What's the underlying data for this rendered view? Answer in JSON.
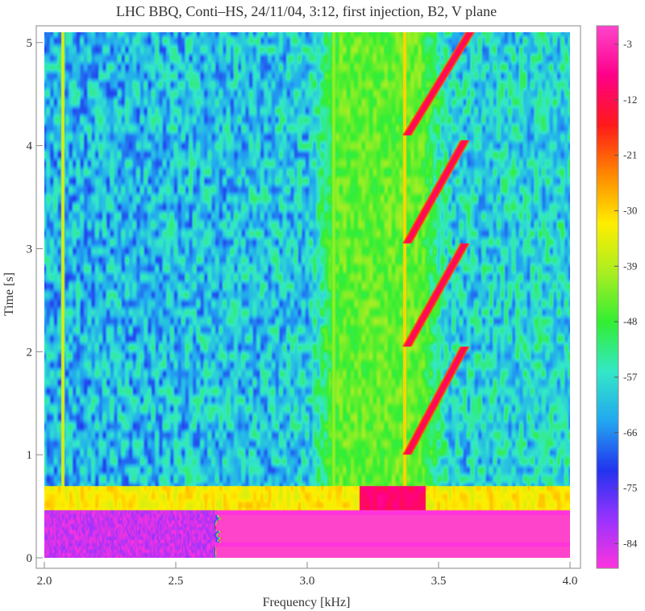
{
  "chart_data": {
    "type": "heatmap",
    "title": "LHC BBQ,  Conti–HS,  24/11/04,  3:12,  first injection,  B2,  V plane",
    "xlabel": "Frequency  [kHz]",
    "ylabel": "Time  [s]",
    "xlim": [
      2.0,
      4.0
    ],
    "ylim": [
      0,
      5.1
    ],
    "x_ticks": [
      "2.0",
      "2.5",
      "3.0",
      "3.5",
      "4.0"
    ],
    "y_ticks": [
      "0",
      "1",
      "2",
      "3",
      "4",
      "5"
    ],
    "colorbar": {
      "range": [
        -88,
        0
      ],
      "ticks": [
        "-3",
        "-12",
        "-21",
        "-30",
        "-39",
        "-48",
        "-57",
        "-66",
        "-75",
        "-84"
      ]
    },
    "color_scheme": [
      "#ff33dd",
      "#9933ff",
      "#2233ee",
      "#22a8f0",
      "#33e8c8",
      "#33ee33",
      "#aaee22",
      "#ffee00",
      "#ff8800",
      "#ff1a1a",
      "#ff0088",
      "#ff44cc"
    ],
    "background_level_db": -84,
    "noise_level_db": -62,
    "injection_band": {
      "t_range": [
        0.5,
        0.7
      ],
      "level_db": -32,
      "peak_db": -10,
      "peak_freq_range": [
        3.2,
        3.45
      ]
    },
    "vertical_lines": [
      {
        "freq": 2.07,
        "level_db": -36
      },
      {
        "freq": 3.37,
        "level_db": -30
      },
      {
        "freq": 3.1,
        "level_db": -42
      }
    ],
    "green_region": {
      "freq_range": [
        3.0,
        3.55
      ],
      "level_db": -45
    },
    "tune_sweeps": [
      {
        "f_start": 3.38,
        "t_start": 1.0,
        "f_end": 3.6,
        "t_end": 2.05
      },
      {
        "f_start": 3.38,
        "t_start": 2.05,
        "f_end": 3.6,
        "t_end": 3.05
      },
      {
        "f_start": 3.38,
        "t_start": 3.05,
        "f_end": 3.6,
        "t_end": 4.05
      },
      {
        "f_start": 3.38,
        "t_start": 4.1,
        "f_end": 3.62,
        "t_end": 5.1
      }
    ]
  }
}
